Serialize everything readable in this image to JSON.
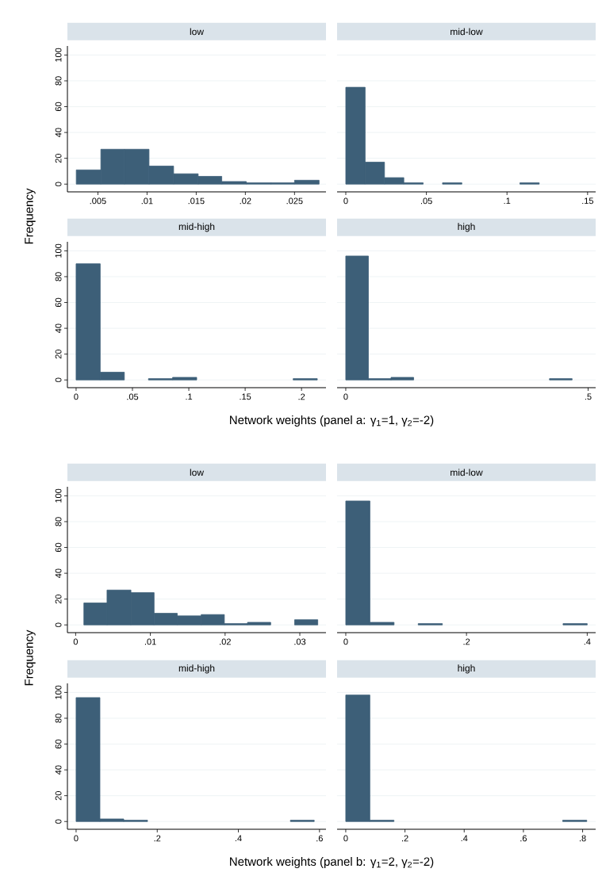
{
  "chart_data": [
    {
      "type": "histogram",
      "title": "low",
      "ylabel": "Frequency",
      "bins": [
        0.0028,
        0.0053,
        0.0077,
        0.0102,
        0.0127,
        0.0152,
        0.0176,
        0.0201,
        0.0226,
        0.025,
        0.0275
      ],
      "values": [
        11,
        27,
        27,
        14,
        8,
        6,
        2,
        1,
        1,
        3
      ],
      "color": "#3d5f78",
      "xlim": [
        0.0019,
        0.0282
      ],
      "xticks": [
        {
          "value": 0.005,
          "label": ".005"
        },
        {
          "value": 0.01,
          "label": ".01"
        },
        {
          "value": 0.015,
          "label": ".015"
        },
        {
          "value": 0.02,
          "label": ".02"
        },
        {
          "value": 0.025,
          "label": ".025"
        }
      ],
      "ylim": [
        -6,
        107
      ],
      "yticks": [
        0,
        20,
        40,
        60,
        80,
        100
      ],
      "grid": "y"
    },
    {
      "type": "histogram",
      "title": "mid-low",
      "bins": [
        0,
        0.012,
        0.024,
        0.036,
        0.048,
        0.06,
        0.072,
        0.084,
        0.096,
        0.108,
        0.12
      ],
      "values": [
        75,
        17,
        5,
        1,
        0,
        1,
        0,
        0,
        0,
        1
      ],
      "color": "#3d5f78",
      "xlim": [
        -0.0054,
        0.155
      ],
      "xticks": [
        0,
        {
          "value": 0.05,
          "label": ".05"
        },
        {
          "value": 0.1,
          "label": ".1"
        },
        {
          "value": 0.15,
          "label": ".15"
        }
      ],
      "yticks": [
        0,
        20,
        40,
        60,
        80,
        100
      ],
      "grid": "y",
      "tick_labels": "x"
    },
    {
      "type": "histogram",
      "title": "mid-high",
      "xlabel": "Network weights (panel a: γ$_{1}$=1, γ$_{2}$=-2)",
      "bins": [
        0,
        0.0214,
        0.0428,
        0.0642,
        0.0856,
        0.107,
        0.1284,
        0.1498,
        0.1712,
        0.1926,
        0.214
      ],
      "values": [
        90,
        6,
        0,
        1,
        2,
        0,
        0,
        0,
        0,
        1
      ],
      "color": "#3d5f78",
      "xlim": [
        -0.0077,
        0.2217
      ],
      "xticks": [
        0,
        {
          "value": 0.05,
          "label": ".05"
        },
        {
          "value": 0.1,
          "label": ".1"
        },
        {
          "value": 0.15,
          "label": ".15"
        },
        {
          "value": 0.2,
          "label": ".2"
        }
      ],
      "ylim": [
        -6,
        107
      ],
      "yticks": [
        0,
        20,
        40,
        60,
        80,
        100
      ],
      "grid": "y"
    },
    {
      "type": "histogram",
      "title": "high",
      "bins": [
        0,
        0.0467,
        0.0934,
        0.1401,
        0.1868,
        0.2335,
        0.2802,
        0.3269,
        0.3736,
        0.4203,
        0.467
      ],
      "values": [
        96,
        1,
        2,
        0,
        0,
        0,
        0,
        0,
        0,
        1
      ],
      "color": "#3d5f78",
      "xlim": [
        -0.0179,
        0.5156
      ],
      "xticks": [
        0,
        {
          "value": 0.5,
          "label": ".5"
        }
      ],
      "yticks": [
        0,
        20,
        40,
        60,
        80,
        100
      ],
      "grid": "y",
      "tick_labels": "x"
    },
    {
      "type": "histogram",
      "title": "low",
      "ylabel": "Frequency",
      "bins": [
        0.0011,
        0.0042,
        0.0074,
        0.0105,
        0.0136,
        0.0168,
        0.0199,
        0.023,
        0.0261,
        0.0293,
        0.0324
      ],
      "values": [
        17,
        27,
        25,
        9,
        7,
        8,
        1,
        2,
        0,
        4
      ],
      "color": "#3d5f78",
      "xlim": [
        -0.0011,
        0.0335
      ],
      "xticks": [
        0,
        {
          "value": 0.01,
          "label": ".01"
        },
        {
          "value": 0.02,
          "label": ".02"
        },
        {
          "value": 0.03,
          "label": ".03"
        }
      ],
      "ylim": [
        -6,
        107
      ],
      "yticks": [
        0,
        20,
        40,
        60,
        80,
        100
      ],
      "grid": "y"
    },
    {
      "type": "histogram",
      "title": "mid-low",
      "bins": [
        0,
        0.04,
        0.08,
        0.12,
        0.16,
        0.2,
        0.24,
        0.28,
        0.32,
        0.36,
        0.4
      ],
      "values": [
        96,
        2,
        0,
        1,
        0,
        0,
        0,
        0,
        0,
        1
      ],
      "color": "#3d5f78",
      "xlim": [
        -0.0144,
        0.414
      ],
      "xticks": [
        0,
        {
          "value": 0.2,
          "label": ".2"
        },
        {
          "value": 0.4,
          "label": ".4"
        }
      ],
      "yticks": [
        0,
        20,
        40,
        60,
        80,
        100
      ],
      "grid": "y",
      "tick_labels": "x"
    },
    {
      "type": "histogram",
      "title": "mid-high",
      "xlabel": "Network weights (panel b: γ$_{1}$=2, γ$_{2}$=-2)",
      "bins": [
        0,
        0.0587,
        0.1174,
        0.1761,
        0.2348,
        0.2935,
        0.3522,
        0.4109,
        0.4696,
        0.5283,
        0.587
      ],
      "values": [
        96,
        2,
        1,
        0,
        0,
        0,
        0,
        0,
        0,
        1
      ],
      "color": "#3d5f78",
      "xlim": [
        -0.0214,
        0.616
      ],
      "xticks": [
        0,
        {
          "value": 0.2,
          "label": ".2"
        },
        {
          "value": 0.4,
          "label": ".4"
        },
        {
          "value": 0.6,
          "label": ".6"
        }
      ],
      "ylim": [
        -6,
        107
      ],
      "yticks": [
        0,
        20,
        40,
        60,
        80,
        100
      ],
      "grid": "y"
    },
    {
      "type": "histogram",
      "title": "high",
      "bins": [
        0,
        0.0814,
        0.1628,
        0.2442,
        0.3256,
        0.407,
        0.4884,
        0.5698,
        0.6512,
        0.7326,
        0.814
      ],
      "values": [
        98,
        1,
        0,
        0,
        0,
        0,
        0,
        0,
        0,
        1
      ],
      "color": "#3d5f78",
      "xlim": [
        -0.0293,
        0.844
      ],
      "xticks": [
        0,
        {
          "value": 0.2,
          "label": ".2"
        },
        {
          "value": 0.4,
          "label": ".4"
        },
        {
          "value": 0.6,
          "label": ".6"
        },
        {
          "value": 0.8,
          "label": ".8"
        }
      ],
      "yticks": [
        0,
        20,
        40,
        60,
        80,
        100
      ],
      "grid": "y",
      "tick_labels": "x"
    }
  ]
}
